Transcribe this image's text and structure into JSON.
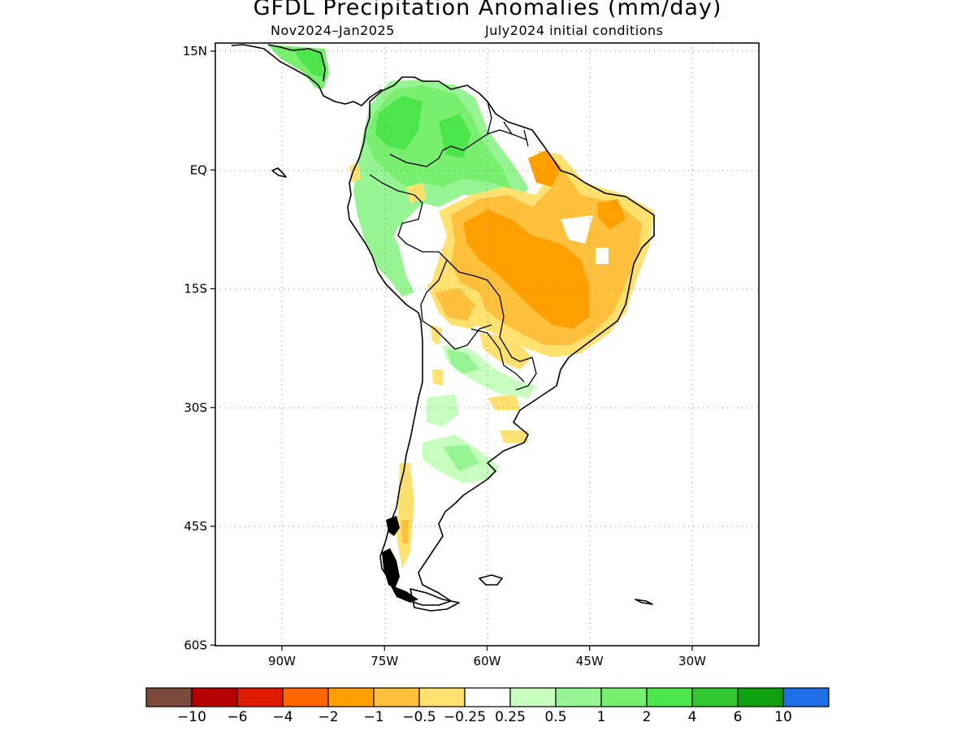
{
  "title": "GFDL Precipitation Anomalies (mm/day)",
  "subtitle_left": "Nov2024–Jan2025",
  "subtitle_right": "July2024 initial conditions",
  "map": {
    "region": "South America",
    "lon_range": [
      -102,
      -22
    ],
    "lat_range": [
      -60,
      15
    ],
    "lat_ticks": [
      {
        "value": 15,
        "label": "15N"
      },
      {
        "value": 0,
        "label": "EQ"
      },
      {
        "value": -15,
        "label": "15S"
      },
      {
        "value": -30,
        "label": "30S"
      },
      {
        "value": -45,
        "label": "45S"
      },
      {
        "value": -60,
        "label": "60S"
      }
    ],
    "lon_ticks": [
      {
        "value": -90,
        "label": "90W"
      },
      {
        "value": -75,
        "label": "75W"
      },
      {
        "value": -60,
        "label": "60W"
      },
      {
        "value": -45,
        "label": "45W"
      },
      {
        "value": -30,
        "label": "30W"
      }
    ],
    "grid": "dotted",
    "anomaly_regions": [
      {
        "name": "Northern South America (Colombia, Venezuela, Guyanas, NW Amazon)",
        "level": "positive 1 to 2"
      },
      {
        "name": "Central America",
        "level": "positive 1 to 2"
      },
      {
        "name": "Central and northern Brazil",
        "level": "negative -1 to -2"
      },
      {
        "name": "Northeast Brazil coast",
        "level": "negative -0.5 to -1"
      },
      {
        "name": "Eastern Bolivia / Paraguay",
        "level": "negative -0.25 to -1"
      },
      {
        "name": "Western Amazon / Peru",
        "level": "positive 0.25 to 1"
      },
      {
        "name": "Northern and central Argentina",
        "level": "positive 0.25 to 1"
      },
      {
        "name": "Southern Chile",
        "level": "negative -0.25 to -1"
      }
    ]
  },
  "colorbar": {
    "colors": [
      "#7b4a3c",
      "#b60000",
      "#e01a00",
      "#ff6600",
      "#ff9f00",
      "#ffc03c",
      "#ffe170",
      "#ffffff",
      "#c6ffbe",
      "#96f592",
      "#78ef6e",
      "#4ce64c",
      "#32c832",
      "#0fa00f",
      "#1e6ee6"
    ],
    "labels": [
      "−10",
      "−6",
      "−4",
      "−2",
      "−1",
      "−0.5",
      "−0.25",
      "0.25",
      "0.5",
      "1",
      "2",
      "4",
      "6",
      "10"
    ]
  }
}
